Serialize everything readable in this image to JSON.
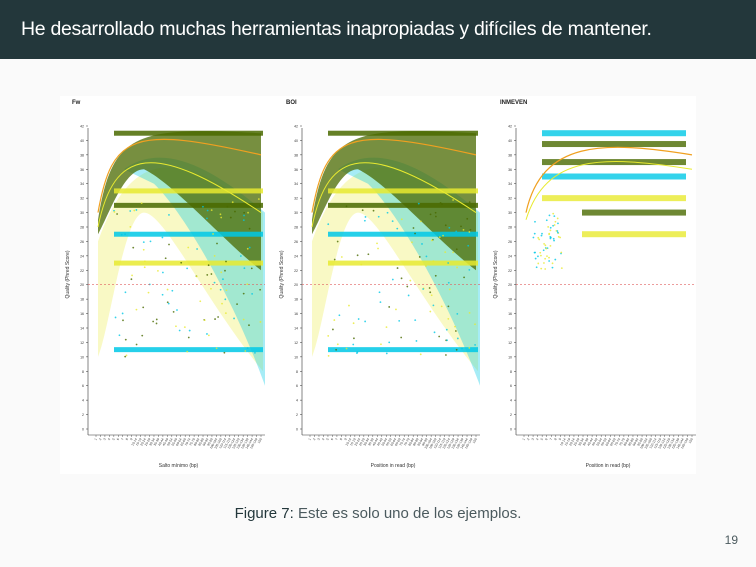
{
  "slide": {
    "title": "He desarrollado muchas herramientas inapropiadas y difíciles de mantener.",
    "caption_label": "Figure 7:",
    "caption_text": "Este es solo uno de los ejemplos.",
    "page_number": "19"
  },
  "colors": {
    "title_bar": "#23373b",
    "dark_green": "#4a6a00",
    "cyan": "#00c8e6",
    "yellow": "#e8ea30",
    "orange": "#f0a020",
    "ref_line": "#e06060"
  },
  "chart_data": [
    {
      "type": "scatter",
      "title": "Fw",
      "xlabel": "Salto mínimo (bp)",
      "ylabel": "Quality (Phred Score)",
      "yticks": [
        "0",
        "2",
        "4",
        "6",
        "8",
        "10",
        "12",
        "14",
        "16",
        "18",
        "20",
        "22",
        "24",
        "26",
        "28",
        "30",
        "32",
        "34",
        "36",
        "38",
        "40",
        "42"
      ],
      "xticks": [
        "1",
        "2",
        "3",
        "4",
        "5",
        "6",
        "7",
        "8",
        "9",
        "10-14",
        "15-19",
        "20-24",
        "25-29",
        "30-34",
        "35-39",
        "40-44",
        "45-49",
        "50-54",
        "55-59",
        "60-64",
        "65-69",
        "70-74",
        "75-79",
        "80-84",
        "85-89",
        "90-94",
        "95-99",
        "100-104",
        "105-109",
        "110-114",
        "115-119",
        "120-124",
        "125-129",
        "130-134",
        "135-139",
        "140-144",
        "145-149",
        "150"
      ],
      "reference_line_y": 20,
      "series": [
        {
          "name": "",
          "color": "dark_green"
        },
        {
          "name": "",
          "color": "cyan"
        },
        {
          "name": "",
          "color": "yellow"
        }
      ]
    },
    {
      "type": "scatter",
      "title": "BOI",
      "xlabel": "Position in read (bp)",
      "ylabel": "Quality (Phred Score)",
      "yticks": [
        "0",
        "2",
        "4",
        "6",
        "8",
        "10",
        "12",
        "14",
        "16",
        "18",
        "20",
        "22",
        "24",
        "26",
        "28",
        "30",
        "32",
        "34",
        "36",
        "38",
        "40",
        "42"
      ],
      "xticks": [
        "1",
        "2",
        "3",
        "4",
        "5",
        "6",
        "7",
        "8",
        "9",
        "10-14",
        "15-19",
        "20-24",
        "25-29",
        "30-34",
        "35-39",
        "40-44",
        "45-49",
        "50-54",
        "55-59",
        "60-64",
        "65-69",
        "70-74",
        "75-79",
        "80-84",
        "85-89",
        "90-94",
        "95-99",
        "100-104",
        "105-109",
        "110-114",
        "115-119",
        "120-124",
        "125-129",
        "130-134",
        "135-139",
        "140-144",
        "145-149",
        "150"
      ],
      "reference_line_y": 20,
      "series": [
        {
          "name": "",
          "color": "dark_green"
        },
        {
          "name": "",
          "color": "cyan"
        },
        {
          "name": "",
          "color": "yellow"
        }
      ]
    },
    {
      "type": "scatter",
      "title": "INMEVEN",
      "xlabel": "Position in read (bp)",
      "ylabel": "Quality (Phred Score)",
      "yticks": [
        "0",
        "2",
        "4",
        "6",
        "8",
        "10",
        "12",
        "14",
        "16",
        "18",
        "20",
        "22",
        "24",
        "26",
        "28",
        "30",
        "32",
        "34",
        "36",
        "38",
        "40",
        "42"
      ],
      "xticks": [
        "1",
        "2",
        "3",
        "4",
        "5",
        "6",
        "7",
        "8",
        "9",
        "10-14",
        "15-19",
        "20-24",
        "25-29",
        "30-34",
        "35-39",
        "40-44",
        "45-49",
        "50-54",
        "55-59",
        "60-64",
        "65-69",
        "70-74",
        "75-79",
        "80-84",
        "85-89",
        "90-94",
        "95-99",
        "100-104",
        "105-109",
        "110-114",
        "115-119",
        "120-124",
        "125-129",
        "130-134",
        "135-139",
        "140-144",
        "145-149",
        "150"
      ],
      "reference_line_y": 20,
      "series": [
        {
          "name": "",
          "color": "dark_green"
        },
        {
          "name": "",
          "color": "cyan"
        },
        {
          "name": "",
          "color": "yellow"
        }
      ]
    }
  ]
}
